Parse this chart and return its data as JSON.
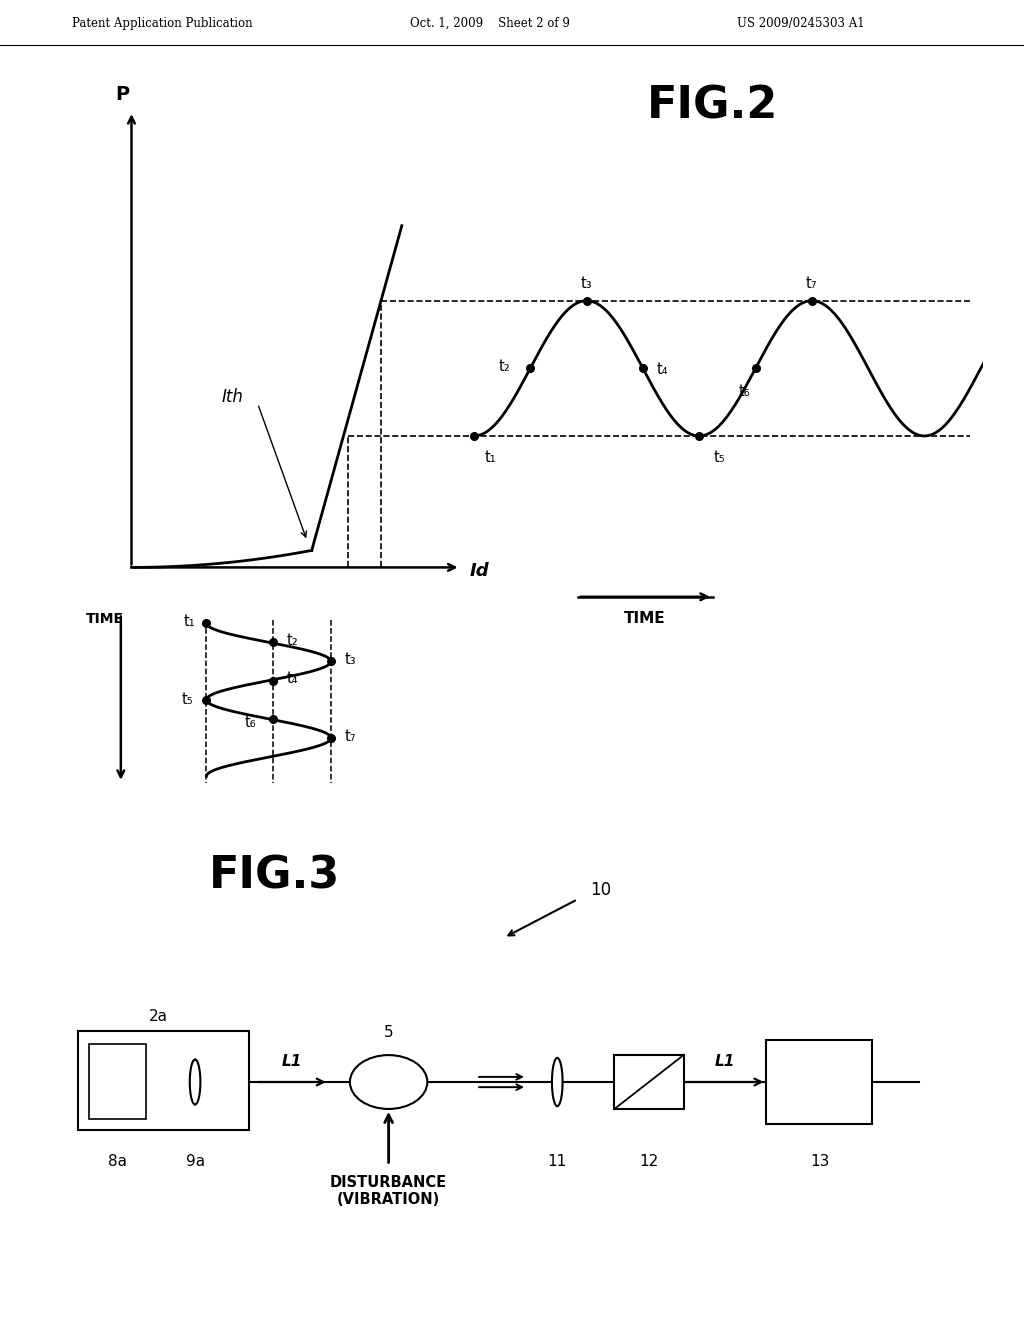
{
  "bg_color": "#ffffff",
  "header_left": "Patent Application Publication",
  "header_mid": "Oct. 1, 2009   Sheet 2 of 9",
  "header_right": "US 2009/0245303 A1",
  "fig2_title": "FIG.2",
  "fig3_title": "FIG.3",
  "time_label": "TIME",
  "p_label": "P",
  "id_label": "Id",
  "ith_label": "Ith",
  "disturbance_label": "DISTURBANCE\n(VIBRATION)"
}
